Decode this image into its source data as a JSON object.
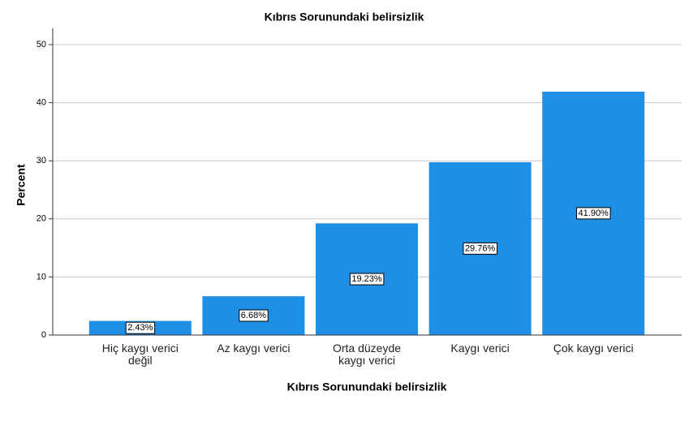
{
  "chart_data": {
    "type": "bar",
    "title": "Kıbrıs Sorunundaki belirsizlik",
    "x_label": "Kıbrıs Sorunundaki belirsizlik",
    "y_label": "Percent",
    "categories": [
      "Hiç kaygı verici değil",
      "Az kaygı verici",
      "Orta düzeyde kaygı verici",
      "Kaygı verici",
      "Çok kaygı verici"
    ],
    "values": [
      2.43,
      6.68,
      19.23,
      29.76,
      41.9
    ],
    "value_labels": [
      "2.43%",
      "6.68%",
      "19.23%",
      "29.76%",
      "41.90%"
    ],
    "color": "#1f8fe5",
    "ylim": [
      0,
      50
    ],
    "yticks": [
      0,
      10,
      20,
      30,
      40,
      50
    ],
    "grid": true
  }
}
